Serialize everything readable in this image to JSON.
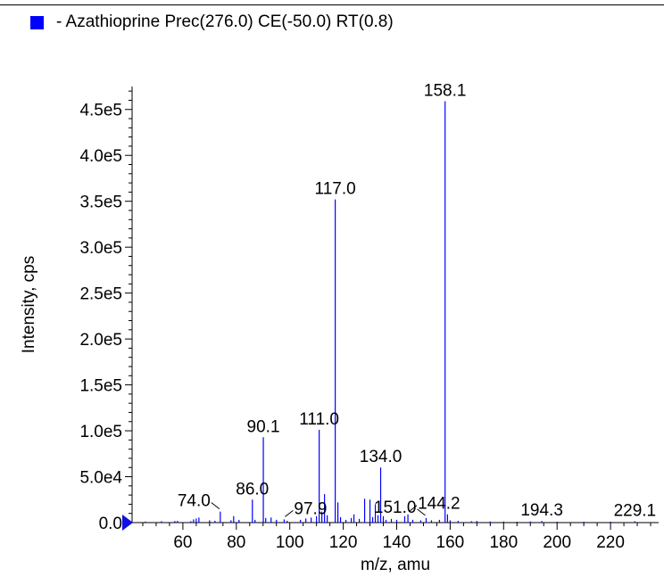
{
  "legend": {
    "label": "- Azathioprine Prec(276.0) CE(-50.0) RT(0.8)",
    "swatch_color": "#0000ff"
  },
  "chart_data": {
    "type": "bar",
    "xlabel": "m/z, amu",
    "ylabel": "Intensity, cps",
    "xlim": [
      41,
      238
    ],
    "ylim": [
      0,
      475000
    ],
    "x_ticks": [
      60,
      80,
      100,
      120,
      140,
      160,
      180,
      200,
      220
    ],
    "y_ticks": [
      {
        "value": 0,
        "label": "0.0"
      },
      {
        "value": 50000,
        "label": "5.0e4"
      },
      {
        "value": 100000,
        "label": "1.0e5"
      },
      {
        "value": 150000,
        "label": "1.5e5"
      },
      {
        "value": 200000,
        "label": "2.0e5"
      },
      {
        "value": 250000,
        "label": "2.5e5"
      },
      {
        "value": 300000,
        "label": "3.0e5"
      },
      {
        "value": 350000,
        "label": "3.5e5"
      },
      {
        "value": 400000,
        "label": "4.0e5"
      },
      {
        "value": 450000,
        "label": "4.5e5"
      }
    ],
    "series_color": "#0000ff",
    "peaks": [
      {
        "x": 46.0,
        "y": 1200
      },
      {
        "x": 52.0,
        "y": 1500
      },
      {
        "x": 57.0,
        "y": 1800
      },
      {
        "x": 58.0,
        "y": 2000
      },
      {
        "x": 63.0,
        "y": 1500
      },
      {
        "x": 64.0,
        "y": 3500
      },
      {
        "x": 65.0,
        "y": 4500
      },
      {
        "x": 66.0,
        "y": 5500
      },
      {
        "x": 70.0,
        "y": 2500
      },
      {
        "x": 72.0,
        "y": 2000
      },
      {
        "x": 74.0,
        "y": 12000
      },
      {
        "x": 78.0,
        "y": 2500
      },
      {
        "x": 79.0,
        "y": 7000
      },
      {
        "x": 81.0,
        "y": 3000
      },
      {
        "x": 86.0,
        "y": 25000
      },
      {
        "x": 87.0,
        "y": 3000
      },
      {
        "x": 90.1,
        "y": 93000
      },
      {
        "x": 91.0,
        "y": 5000
      },
      {
        "x": 93.0,
        "y": 5500
      },
      {
        "x": 95.0,
        "y": 3000
      },
      {
        "x": 97.9,
        "y": 3500
      },
      {
        "x": 99.0,
        "y": 2000
      },
      {
        "x": 104.0,
        "y": 3000
      },
      {
        "x": 106.0,
        "y": 4500
      },
      {
        "x": 108.0,
        "y": 5500
      },
      {
        "x": 110.0,
        "y": 7000
      },
      {
        "x": 111.0,
        "y": 101000
      },
      {
        "x": 112.0,
        "y": 12000
      },
      {
        "x": 113.0,
        "y": 31000
      },
      {
        "x": 114.0,
        "y": 8000
      },
      {
        "x": 117.0,
        "y": 352000
      },
      {
        "x": 118.0,
        "y": 22000
      },
      {
        "x": 119.0,
        "y": 6000
      },
      {
        "x": 121.0,
        "y": 3000
      },
      {
        "x": 123.0,
        "y": 5000
      },
      {
        "x": 124.0,
        "y": 9000
      },
      {
        "x": 126.0,
        "y": 4000
      },
      {
        "x": 128.0,
        "y": 26000
      },
      {
        "x": 130.0,
        "y": 25000
      },
      {
        "x": 131.0,
        "y": 6000
      },
      {
        "x": 132.0,
        "y": 20000
      },
      {
        "x": 133.0,
        "y": 8000
      },
      {
        "x": 134.0,
        "y": 60000
      },
      {
        "x": 135.0,
        "y": 7000
      },
      {
        "x": 136.0,
        "y": 3000
      },
      {
        "x": 138.0,
        "y": 4000
      },
      {
        "x": 140.0,
        "y": 3000
      },
      {
        "x": 143.0,
        "y": 7000
      },
      {
        "x": 144.2,
        "y": 9000
      },
      {
        "x": 146.0,
        "y": 3000
      },
      {
        "x": 149.0,
        "y": 2500
      },
      {
        "x": 151.0,
        "y": 5000
      },
      {
        "x": 153.0,
        "y": 2500
      },
      {
        "x": 156.0,
        "y": 3000
      },
      {
        "x": 158.1,
        "y": 459000
      },
      {
        "x": 159.0,
        "y": 9000
      },
      {
        "x": 160.0,
        "y": 2500
      },
      {
        "x": 163.0,
        "y": 2000
      },
      {
        "x": 168.0,
        "y": 1500
      },
      {
        "x": 170.0,
        "y": 1800
      },
      {
        "x": 175.0,
        "y": 1200
      },
      {
        "x": 180.0,
        "y": 1200
      },
      {
        "x": 185.0,
        "y": 1000
      },
      {
        "x": 190.0,
        "y": 1200
      },
      {
        "x": 194.3,
        "y": 1800
      },
      {
        "x": 200.0,
        "y": 1000
      },
      {
        "x": 210.0,
        "y": 1000
      },
      {
        "x": 220.0,
        "y": 1000
      },
      {
        "x": 229.1,
        "y": 1500
      }
    ],
    "peak_labels": [
      {
        "x": 74.0,
        "y": 12000,
        "label": "74.0",
        "leader": true,
        "anchor": "end"
      },
      {
        "x": 86.0,
        "y": 25000,
        "label": "86.0"
      },
      {
        "x": 90.1,
        "y": 93000,
        "label": "90.1"
      },
      {
        "x": 97.9,
        "y": 3500,
        "label": "97.9",
        "leader": true,
        "anchor": "start"
      },
      {
        "x": 111.0,
        "y": 101000,
        "label": "111.0"
      },
      {
        "x": 117.0,
        "y": 352000,
        "label": "117.0"
      },
      {
        "x": 134.0,
        "y": 60000,
        "label": "134.0"
      },
      {
        "x": 144.2,
        "y": 9000,
        "label": "144.2",
        "leader": true,
        "anchor": "start"
      },
      {
        "x": 151.0,
        "y": 5000,
        "label": "151.0",
        "leader": true,
        "anchor": "end"
      },
      {
        "x": 158.1,
        "y": 459000,
        "label": "158.1"
      },
      {
        "x": 194.3,
        "y": 1800,
        "label": "194.3"
      },
      {
        "x": 229.1,
        "y": 1500,
        "label": "229.1"
      }
    ]
  }
}
